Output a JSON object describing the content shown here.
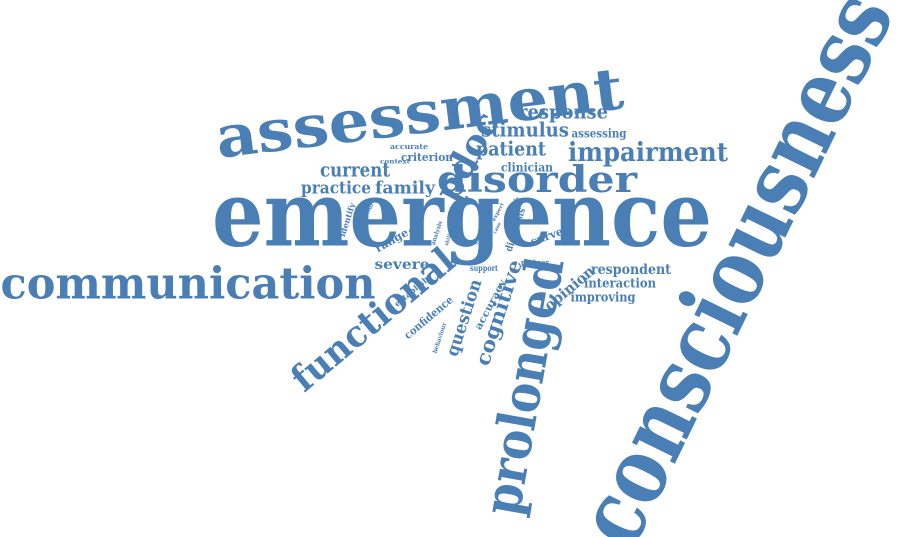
{
  "color": "#4a7fb5",
  "words": [
    {
      "text": "consciousness",
      "rotate": -64
    },
    {
      "text": "emergence",
      "rotate": 0
    },
    {
      "text": "assessment",
      "rotate": -7
    },
    {
      "text": "communication",
      "rotate": 0
    },
    {
      "text": "prolonged",
      "rotate": -80
    },
    {
      "text": "functional",
      "rotate": -40
    },
    {
      "text": "disorder",
      "rotate": 0
    },
    {
      "text": "impairment",
      "rotate": 0
    },
    {
      "text": "pdoc",
      "rotate": -62
    },
    {
      "text": "response",
      "rotate": 0
    },
    {
      "text": "stimulus",
      "rotate": 0
    },
    {
      "text": "patient",
      "rotate": 0
    },
    {
      "text": "current",
      "rotate": 0
    },
    {
      "text": "practice",
      "rotate": 0
    },
    {
      "text": "family",
      "rotate": 0
    },
    {
      "text": "respondent",
      "rotate": 0
    },
    {
      "text": "cognitive",
      "rotate": -72
    },
    {
      "text": "question",
      "rotate": -72
    },
    {
      "text": "severe",
      "rotate": 0
    },
    {
      "text": "opinion",
      "rotate": -40
    },
    {
      "text": "interaction",
      "rotate": 0
    },
    {
      "text": "improving",
      "rotate": 0
    },
    {
      "text": "clinician",
      "rotate": 0
    },
    {
      "text": "assessing",
      "rotate": 0
    },
    {
      "text": "criterion",
      "rotate": 0
    },
    {
      "text": "confidence",
      "rotate": -40
    },
    {
      "text": "accuracy",
      "rotate": -62
    },
    {
      "text": "task",
      "rotate": -72
    },
    {
      "text": "range",
      "rotate": -30
    },
    {
      "text": "survey",
      "rotate": -20
    },
    {
      "text": "diagnosis",
      "rotate": -72
    },
    {
      "text": "establish",
      "rotate": -40
    },
    {
      "text": "identify",
      "rotate": -72
    },
    {
      "text": "accurate",
      "rotate": 0
    },
    {
      "text": "context",
      "rotate": 0
    },
    {
      "text": "support",
      "rotate": 0
    },
    {
      "text": "partner",
      "rotate": 0
    },
    {
      "text": "behaviour",
      "rotate": -72
    },
    {
      "text": "analysis",
      "rotate": -72
    },
    {
      "text": "skill",
      "rotate": -72
    },
    {
      "text": "colour",
      "rotate": -62
    },
    {
      "text": "expert",
      "rotate": -62
    },
    {
      "text": "case",
      "rotate": -62
    },
    {
      "text": "need",
      "rotate": 0
    },
    {
      "text": "study",
      "rotate": -62
    }
  ]
}
